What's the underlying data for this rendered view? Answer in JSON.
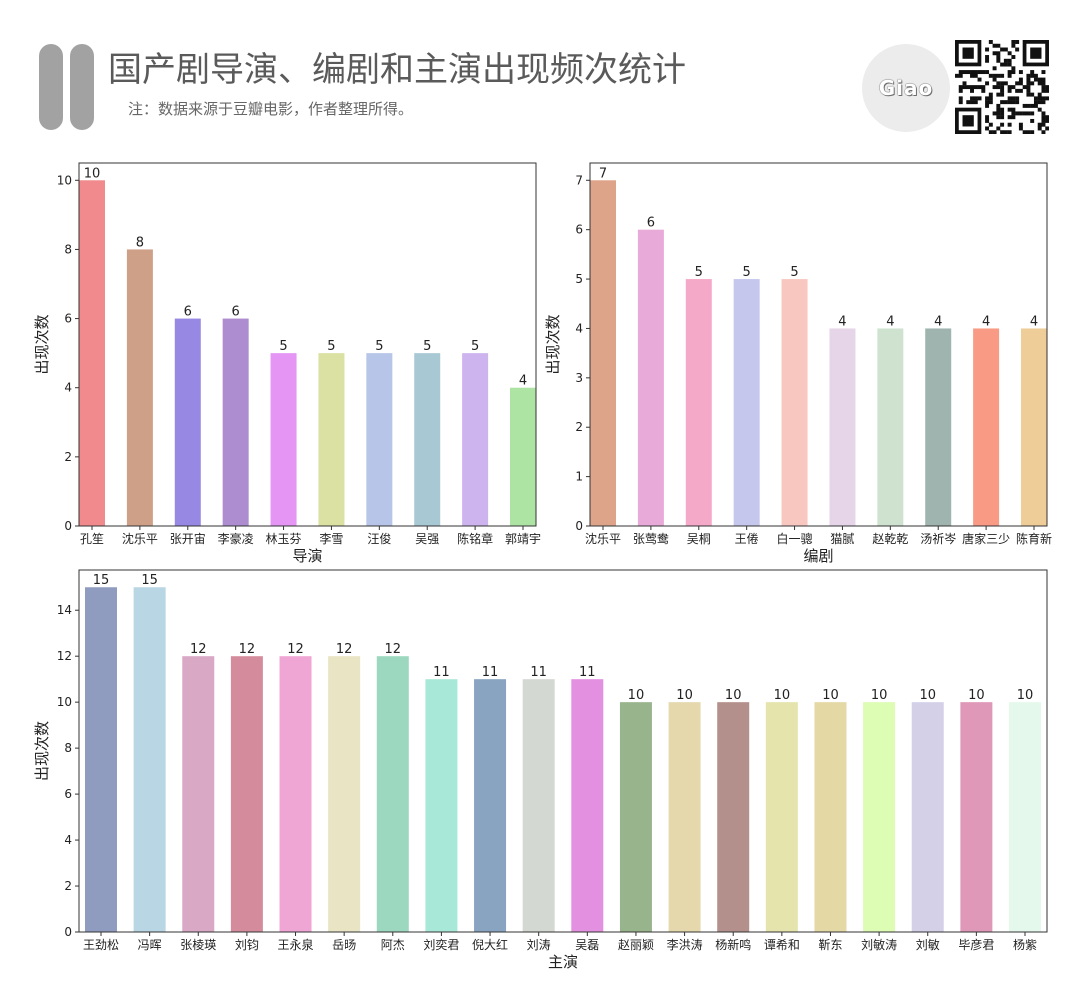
{
  "header": {
    "title": "国产剧导演、编剧和主演出现频次统计",
    "note": "注：数据来源于豆瓣电影，作者整理所得。",
    "logo_text": "Giao"
  },
  "chart_data": [
    {
      "type": "bar",
      "xlabel": "导演",
      "ylabel": "出现次数",
      "ylim": [
        0,
        10.5
      ],
      "yticks": [
        0,
        2,
        4,
        6,
        8,
        10
      ],
      "categories": [
        "孔笙",
        "沈乐平",
        "张开宙",
        "李豪凌",
        "林玉芬",
        "李雪",
        "汪俊",
        "吴强",
        "陈铭章",
        "郭靖宇"
      ],
      "values": [
        10,
        8,
        6,
        6,
        5,
        5,
        5,
        5,
        5,
        4
      ],
      "colors": [
        "#f08a8c",
        "#cfa088",
        "#9788e4",
        "#ad8cd0",
        "#e596f5",
        "#dbe1a2",
        "#b6c5e8",
        "#a8c8d4",
        "#ceb4ef",
        "#ade4a4"
      ]
    },
    {
      "type": "bar",
      "xlabel": "编剧",
      "ylabel": "出现次数",
      "ylim": [
        0,
        7.35
      ],
      "yticks": [
        0,
        1,
        2,
        3,
        4,
        5,
        6,
        7
      ],
      "categories": [
        "沈乐平",
        "张莺鸯",
        "吴桐",
        "王倦",
        "白一骢",
        "猫腻",
        "赵乾乾",
        "汤祈岑",
        "唐家三少",
        "陈育新"
      ],
      "values": [
        7,
        6,
        5,
        5,
        5,
        4,
        4,
        4,
        4,
        4
      ],
      "colors": [
        "#dea48a",
        "#e8aad8",
        "#f5a9c8",
        "#c5c8ec",
        "#f8c8c0",
        "#e6d4e8",
        "#cfe2d0",
        "#9fb4ae",
        "#f99a84",
        "#efcd98"
      ]
    },
    {
      "type": "bar",
      "xlabel": "主演",
      "ylabel": "出现次数",
      "ylim": [
        0,
        15.75
      ],
      "yticks": [
        0,
        2,
        4,
        6,
        8,
        10,
        12,
        14
      ],
      "categories": [
        "王劲松",
        "冯晖",
        "张棱瑛",
        "刘钧",
        "王永泉",
        "岳旸",
        "阿杰",
        "刘奕君",
        "倪大红",
        "刘涛",
        "吴磊",
        "赵丽颖",
        "李洪涛",
        "杨新鸣",
        "谭希和",
        "靳东",
        "刘敏涛",
        "刘敏",
        "毕彦君",
        "杨紫"
      ],
      "values": [
        15,
        15,
        12,
        12,
        12,
        12,
        12,
        11,
        11,
        11,
        11,
        10,
        10,
        10,
        10,
        10,
        10,
        10,
        10,
        10
      ],
      "colors": [
        "#8f9cc0",
        "#b8d6e4",
        "#d8a8c4",
        "#d48c9c",
        "#f0a6d4",
        "#e8e4c4",
        "#9cd8c0",
        "#a8e8d8",
        "#88a4c0",
        "#d4d8d2",
        "#e490e0",
        "#98b48c",
        "#e4d8ac",
        "#b4908c",
        "#e4e4ac",
        "#e4d8a4",
        "#ddfcb4",
        "#d4d0e8",
        "#e098b8",
        "#e4f8ec"
      ]
    }
  ]
}
